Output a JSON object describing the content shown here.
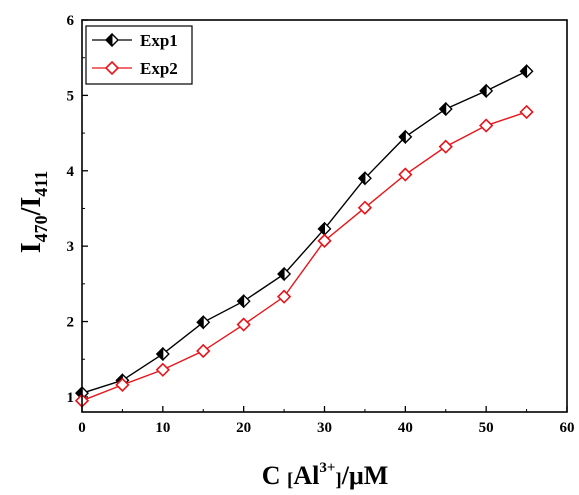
{
  "chart_data": {
    "type": "line",
    "title": "",
    "xlabel": {
      "main": "C ",
      "bracket_open": "[",
      "ion": "Al",
      "charge": "3+",
      "bracket_close": "]",
      "unit": "/μM"
    },
    "ylabel": {
      "main": "I",
      "sub1": "470",
      "slash": "/I",
      "sub2": "411"
    },
    "xlim": [
      0,
      60
    ],
    "ylim": [
      0.8,
      6
    ],
    "xticks": [
      "0",
      "10",
      "20",
      "30",
      "40",
      "50",
      "60"
    ],
    "yticks": [
      "1",
      "2",
      "3",
      "4",
      "5",
      "6"
    ],
    "xtick_values": [
      0,
      10,
      20,
      30,
      40,
      50,
      60
    ],
    "ytick_values": [
      1,
      2,
      3,
      4,
      5,
      6
    ],
    "grid": false,
    "legend_position": "top-left",
    "x": [
      0,
      5,
      10,
      15,
      20,
      25,
      30,
      35,
      40,
      45,
      50,
      55
    ],
    "series": [
      {
        "name": "Exp1",
        "color": "#000000",
        "marker": "half-filled-diamond",
        "values": [
          1.05,
          1.22,
          1.57,
          1.99,
          2.27,
          2.63,
          3.23,
          3.9,
          4.45,
          4.82,
          5.06,
          5.32
        ]
      },
      {
        "name": "Exp2",
        "color": "#e8141a",
        "marker": "open-diamond",
        "values": [
          0.95,
          1.16,
          1.36,
          1.61,
          1.96,
          2.33,
          3.07,
          3.51,
          3.95,
          4.32,
          4.6,
          4.78
        ]
      }
    ]
  }
}
